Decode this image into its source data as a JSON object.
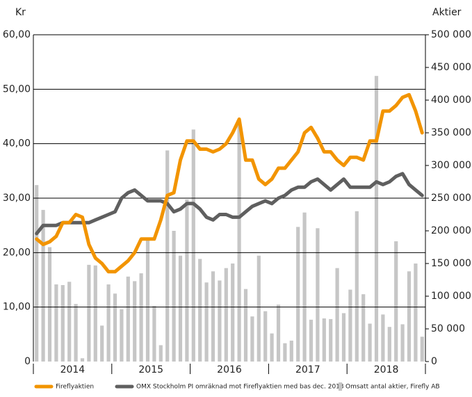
{
  "chart_data": {
    "type": "bar-line",
    "y_label": "Kr",
    "y2_label": "Aktier",
    "years": [
      "2014",
      "2015",
      "2016",
      "2017",
      "2018"
    ],
    "ylim": [
      0,
      60
    ],
    "yticks": [
      0,
      {
        "value": 10,
        "label": "10,00"
      },
      {
        "value": 20,
        "label": "20,00"
      },
      {
        "value": 30,
        "label": "30,00"
      },
      {
        "value": 40,
        "label": "40,00"
      },
      {
        "value": 50,
        "label": "50,00"
      },
      {
        "value": 60,
        "label": "60,00"
      }
    ],
    "y2lim": [
      0,
      500000
    ],
    "y2ticks": [
      0,
      {
        "value": 50000,
        "label": "50 000"
      },
      {
        "value": 100000,
        "label": "100 000"
      },
      {
        "value": 150000,
        "label": "150 000"
      },
      {
        "value": 200000,
        "label": "200 000"
      },
      {
        "value": 250000,
        "label": "250 000"
      },
      {
        "value": 300000,
        "label": "300 000"
      },
      {
        "value": 350000,
        "label": "350 000"
      },
      {
        "value": 400000,
        "label": "400 000"
      },
      {
        "value": 450000,
        "label": "450 000"
      },
      {
        "value": 500000,
        "label": "500 000"
      }
    ],
    "grid": true,
    "series": [
      {
        "name": "Omsatt antal aktier, Firefly AB",
        "kind": "bar",
        "axis": "y2",
        "color": "#c6c6c6",
        "values": [
          270000,
          232000,
          175000,
          118000,
          117000,
          122000,
          88000,
          5000,
          148000,
          147000,
          55000,
          118000,
          104000,
          80000,
          130000,
          123000,
          135000,
          187000,
          85000,
          25000,
          323000,
          200000,
          162000,
          248000,
          355000,
          157000,
          121000,
          138000,
          124000,
          143000,
          150000,
          368000,
          111000,
          69000,
          162000,
          77000,
          43000,
          87000,
          28000,
          32000,
          206000,
          228000,
          64000,
          204000,
          66000,
          65000,
          143000,
          74000,
          110000,
          230000,
          103000,
          58000,
          437000,
          72000,
          53000,
          184000,
          57000,
          138000,
          150000,
          38000
        ]
      },
      {
        "name": "OMX Stockholm PI omräknad mot Fireflyaktien med bas dec. 2013",
        "kind": "line",
        "color": "#5f5f5f",
        "values": [
          23.5,
          25,
          25,
          25,
          25.5,
          25.5,
          25.5,
          25.5,
          25.5,
          26,
          26.5,
          27,
          27.5,
          30,
          31,
          31.5,
          30.5,
          29.5,
          29.5,
          29.5,
          29,
          27.5,
          28,
          29,
          29,
          28,
          26.5,
          26,
          27,
          27,
          26.5,
          26.5,
          27.5,
          28.5,
          29,
          29.5,
          29,
          30,
          30.5,
          31.5,
          32,
          32,
          33,
          33.5,
          32.5,
          31.5,
          32.5,
          33.5,
          32,
          32,
          32,
          32,
          33,
          32.5,
          33,
          34,
          34.5,
          32.5,
          31.5,
          30.5
        ]
      },
      {
        "name": "Fireflyaktien",
        "kind": "line",
        "color": "#f29400",
        "values": [
          22.5,
          21.5,
          22,
          23,
          25.5,
          25.5,
          27,
          26.5,
          21.5,
          19,
          18,
          16.5,
          16.5,
          17.5,
          18.5,
          20,
          22.5,
          22.5,
          22.5,
          26,
          30.5,
          31,
          37,
          40.5,
          40.5,
          39,
          39,
          38.5,
          39,
          40,
          42,
          44.5,
          37,
          37,
          33.5,
          32.5,
          33.5,
          35.5,
          35.5,
          37,
          38.5,
          42,
          43,
          41,
          38.5,
          38.5,
          37,
          36,
          37.5,
          37.5,
          37,
          40.5,
          40.5,
          46,
          46,
          47,
          48.5,
          49,
          46,
          42
        ]
      }
    ],
    "legend_order": [
      2,
      1,
      0
    ]
  }
}
